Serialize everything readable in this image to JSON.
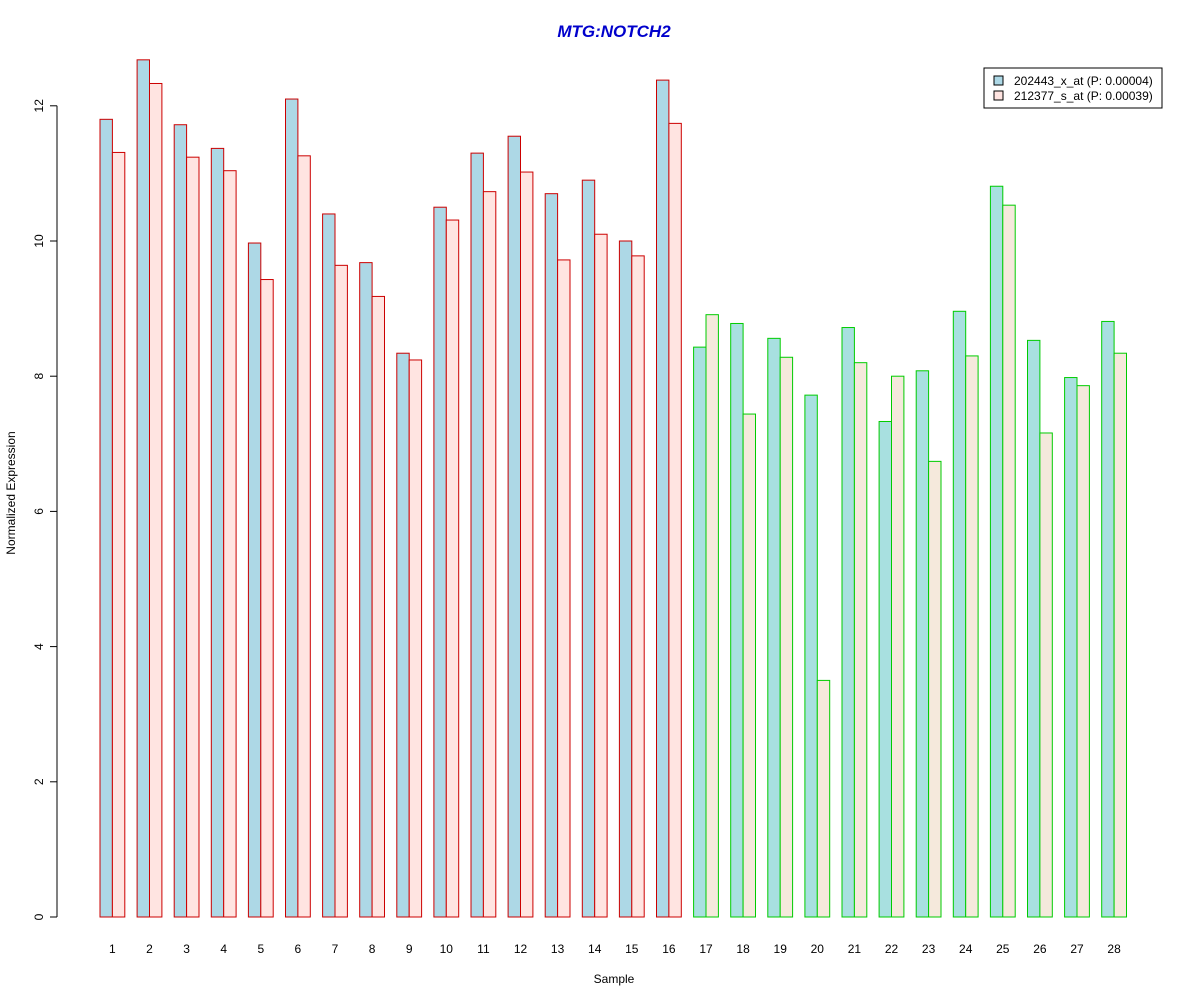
{
  "chart_data": {
    "type": "bar",
    "title": "MTG:NOTCH2",
    "xlabel": "Sample",
    "ylabel": "Normalized Expression",
    "ylim": [
      0,
      12.7
    ],
    "yticks": [
      0,
      2,
      4,
      6,
      8,
      10,
      12
    ],
    "grid": false,
    "legend_position": "top-right",
    "categories": [
      "1",
      "2",
      "3",
      "4",
      "5",
      "6",
      "7",
      "8",
      "9",
      "10",
      "11",
      "12",
      "13",
      "14",
      "15",
      "16",
      "17",
      "18",
      "19",
      "20",
      "21",
      "22",
      "23",
      "24",
      "25",
      "26",
      "27",
      "28"
    ],
    "series": [
      {
        "name": "202443_x_at (P: 0.00004)",
        "values": [
          11.8,
          12.68,
          11.72,
          11.37,
          9.97,
          12.1,
          10.4,
          9.68,
          8.34,
          10.5,
          11.3,
          11.55,
          10.7,
          10.9,
          10.0,
          12.38,
          8.43,
          8.78,
          8.56,
          7.72,
          8.72,
          7.33,
          8.08,
          8.96,
          10.81,
          8.53,
          7.98,
          8.81
        ]
      },
      {
        "name": "212377_s_at (P: 0.00039)",
        "values": [
          11.31,
          12.33,
          11.24,
          11.04,
          9.43,
          11.26,
          9.64,
          9.18,
          8.24,
          10.31,
          10.73,
          11.02,
          9.72,
          10.1,
          9.78,
          11.74,
          8.91,
          7.44,
          8.28,
          3.5,
          8.2,
          8.0,
          6.74,
          8.3,
          10.53,
          7.16,
          7.86,
          8.34
        ]
      }
    ],
    "groups": [
      {
        "samples": [
          1,
          16
        ],
        "border_color": "#cc0000",
        "fill_series1": "#add8e6",
        "fill_series2": "#ffe4e1"
      },
      {
        "samples": [
          17,
          28
        ],
        "border_color": "#00cc00",
        "fill_series1": "#a8e0e0",
        "fill_series2": "#f5e9dc"
      }
    ],
    "colors": {
      "title": "#0000cc",
      "legend_series1": "#add8e6",
      "legend_series2": "#ffe4e1"
    }
  }
}
